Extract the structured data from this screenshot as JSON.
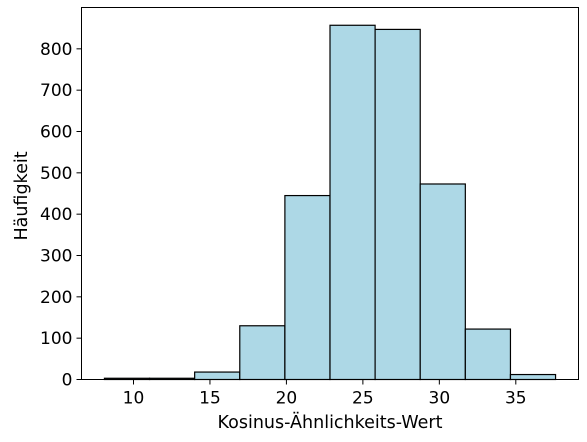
{
  "chart_data": {
    "type": "bar",
    "histogram": true,
    "xlabel": "Kosinus-Ähnlichkeits-Wert",
    "ylabel": "Häufigkeit",
    "bin_edges": [
      8.1,
      11.05,
      14.0,
      16.95,
      19.9,
      22.85,
      25.8,
      28.75,
      31.7,
      34.65,
      37.6
    ],
    "values": [
      3,
      3,
      18,
      130,
      445,
      857,
      847,
      473,
      122,
      12
    ],
    "xlim": [
      6.6,
      39.1
    ],
    "ylim": [
      0,
      900
    ],
    "xticks": [
      10,
      15,
      20,
      25,
      30,
      35
    ],
    "yticks": [
      0,
      100,
      200,
      300,
      400,
      500,
      600,
      700,
      800
    ],
    "bar_color": "#add8e6",
    "edge_color": "#000000",
    "grid": false,
    "legend": "none"
  }
}
